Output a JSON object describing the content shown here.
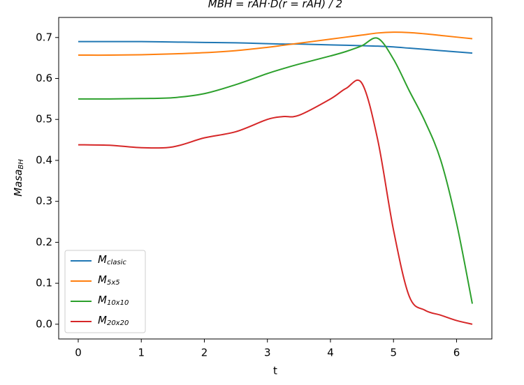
{
  "chart_data": {
    "type": "line",
    "title": "MBH = rAH·D(r = rAH) / 2",
    "xlabel": "t",
    "ylabel": "MasaBH",
    "x": [
      0,
      0.5,
      1,
      1.5,
      2,
      2.5,
      3,
      3.25,
      3.5,
      4,
      4.25,
      4.5,
      4.75,
      5,
      5.25,
      5.5,
      5.75,
      6,
      6.25
    ],
    "series": [
      {
        "name": "Mclasic",
        "color": "#1f77b4",
        "values": [
          0.69,
          0.69,
          0.69,
          0.689,
          0.688,
          0.687,
          0.685,
          0.684,
          0.684,
          0.682,
          0.681,
          0.68,
          0.679,
          0.677,
          0.674,
          0.671,
          0.668,
          0.665,
          0.662
        ]
      },
      {
        "name": "M5x5",
        "color": "#ff7f0e",
        "values": [
          0.657,
          0.657,
          0.658,
          0.66,
          0.663,
          0.668,
          0.676,
          0.681,
          0.686,
          0.696,
          0.701,
          0.706,
          0.711,
          0.713,
          0.712,
          0.709,
          0.705,
          0.701,
          0.697
        ]
      },
      {
        "name": "M10x10",
        "color": "#2ca02c",
        "values": [
          0.55,
          0.55,
          0.551,
          0.553,
          0.563,
          0.585,
          0.612,
          0.624,
          0.635,
          0.655,
          0.666,
          0.68,
          0.698,
          0.647,
          0.57,
          0.495,
          0.4,
          0.247,
          0.05
        ]
      },
      {
        "name": "M20x20",
        "color": "#d62728",
        "values": [
          0.438,
          0.437,
          0.431,
          0.433,
          0.455,
          0.47,
          0.5,
          0.507,
          0.51,
          0.55,
          0.576,
          0.588,
          0.45,
          0.23,
          0.068,
          0.034,
          0.022,
          0.009,
          0.0
        ]
      }
    ],
    "xlim": [
      -0.31,
      6.56
    ],
    "xticks": [
      0,
      1,
      2,
      3,
      4,
      5,
      6
    ],
    "ylim": [
      -0.036,
      0.749
    ],
    "yticks": [
      {
        "value": 0,
        "label": "0.0"
      },
      0.1,
      0.2,
      0.3,
      0.4,
      0.5,
      0.6,
      0.7
    ],
    "legend": "lower left",
    "grid": false
  }
}
